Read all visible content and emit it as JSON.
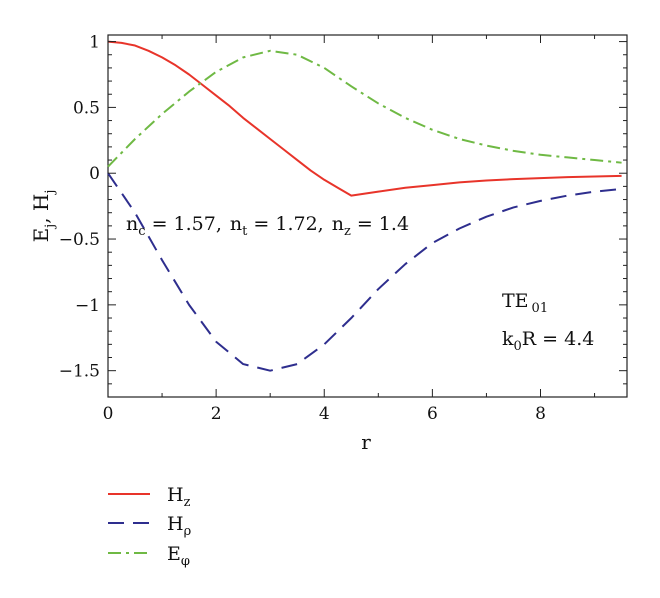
{
  "chart_data": {
    "type": "line",
    "xlabel": "r",
    "ylabel": "E_j, H_j",
    "ylabel_parts": {
      "e": "E",
      "e_sub": "j",
      "sep": ", ",
      "h": "H",
      "h_sub": "j"
    },
    "xlim": [
      0,
      9.6
    ],
    "ylim": [
      -1.7,
      1.05
    ],
    "x_ticks": [
      0,
      2,
      4,
      6,
      8
    ],
    "y_ticks": [
      1,
      0.5,
      0,
      -0.5,
      -1,
      -1.5
    ],
    "x_tick_labels": [
      "0",
      "2",
      "4",
      "6",
      "8"
    ],
    "y_tick_labels": [
      "1",
      "0.5",
      "0",
      "−0.5",
      "−1",
      "−1.5"
    ],
    "grid": false,
    "legend_position": "below-left",
    "annotations": {
      "params": {
        "nc_base": "n",
        "nc_sub": "c",
        "nc_val": " = 1.57,",
        "nt_base": "n",
        "nt_sub": "t",
        "nt_val": " = 1.72,",
        "nz_base": "n",
        "nz_sub": "z",
        "nz_val": " = 1.4"
      },
      "mode": {
        "base": "TE",
        "sub": "01"
      },
      "k0r": {
        "base": "k",
        "sub": "0",
        "rest": "R = 4.4"
      }
    },
    "series": [
      {
        "name": "H_z",
        "legend_base": "H",
        "legend_sub": "z",
        "color": "#e8342a",
        "dash": "solid",
        "x": [
          0,
          0.25,
          0.5,
          0.75,
          1.0,
          1.25,
          1.5,
          1.75,
          2.0,
          2.25,
          2.5,
          2.75,
          3.0,
          3.25,
          3.5,
          3.75,
          4.0,
          4.25,
          4.5,
          5.0,
          5.5,
          6.0,
          6.5,
          7.0,
          7.5,
          8.0,
          8.5,
          9.0,
          9.5
        ],
        "y": [
          1.0,
          0.99,
          0.97,
          0.93,
          0.88,
          0.82,
          0.75,
          0.67,
          0.59,
          0.51,
          0.42,
          0.34,
          0.26,
          0.18,
          0.1,
          0.02,
          -0.05,
          -0.11,
          -0.17,
          -0.14,
          -0.11,
          -0.09,
          -0.07,
          -0.055,
          -0.045,
          -0.037,
          -0.03,
          -0.025,
          -0.02
        ]
      },
      {
        "name": "H_rho",
        "legend_base": "H",
        "legend_sub": "ρ",
        "color": "#2e2e8e",
        "dash": "dashed",
        "x": [
          0,
          0.5,
          1.0,
          1.5,
          2.0,
          2.5,
          3.0,
          3.5,
          4.0,
          4.5,
          5.0,
          5.5,
          6.0,
          6.5,
          7.0,
          7.5,
          8.0,
          8.5,
          9.0,
          9.5
        ],
        "y": [
          0.0,
          -0.3,
          -0.66,
          -1.0,
          -1.28,
          -1.45,
          -1.5,
          -1.45,
          -1.3,
          -1.1,
          -0.88,
          -0.69,
          -0.53,
          -0.42,
          -0.33,
          -0.26,
          -0.21,
          -0.17,
          -0.14,
          -0.12
        ]
      },
      {
        "name": "E_phi",
        "legend_base": "E",
        "legend_sub": "φ",
        "color": "#6fb944",
        "dash": "dashdot",
        "x": [
          0,
          0.5,
          1.0,
          1.5,
          2.0,
          2.5,
          3.0,
          3.5,
          4.0,
          4.5,
          5.0,
          5.5,
          6.0,
          6.5,
          7.0,
          7.5,
          8.0,
          8.5,
          9.0,
          9.5
        ],
        "y": [
          0.05,
          0.26,
          0.45,
          0.62,
          0.77,
          0.88,
          0.93,
          0.9,
          0.8,
          0.66,
          0.53,
          0.42,
          0.33,
          0.26,
          0.21,
          0.17,
          0.14,
          0.12,
          0.1,
          0.08
        ]
      }
    ]
  }
}
